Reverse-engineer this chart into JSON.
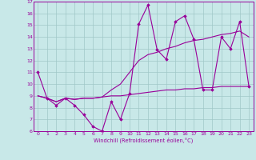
{
  "title": "",
  "xlabel": "Windchill (Refroidissement éolien,°C)",
  "ylabel": "",
  "xlim": [
    -0.5,
    23.5
  ],
  "ylim": [
    6,
    17
  ],
  "yticks": [
    6,
    7,
    8,
    9,
    10,
    11,
    12,
    13,
    14,
    15,
    16,
    17
  ],
  "xticks": [
    0,
    1,
    2,
    3,
    4,
    5,
    6,
    7,
    8,
    9,
    10,
    11,
    12,
    13,
    14,
    15,
    16,
    17,
    18,
    19,
    20,
    21,
    22,
    23
  ],
  "bg_color": "#c8e8e8",
  "line_color": "#990099",
  "grid_color": "#a0c8c8",
  "line1_x": [
    0,
    1,
    2,
    3,
    4,
    5,
    6,
    7,
    8,
    9,
    10,
    11,
    12,
    13,
    14,
    15,
    16,
    17,
    18,
    19,
    20,
    21,
    22,
    23
  ],
  "line1_y": [
    11.0,
    8.8,
    8.2,
    8.8,
    8.2,
    7.4,
    6.4,
    6.0,
    8.5,
    7.0,
    9.2,
    15.1,
    16.7,
    12.9,
    12.1,
    15.3,
    15.8,
    13.8,
    9.5,
    9.5,
    14.0,
    13.0,
    15.3,
    9.8
  ],
  "line2_x": [
    0,
    1,
    2,
    3,
    4,
    5,
    6,
    7,
    8,
    9,
    10,
    11,
    12,
    13,
    14,
    15,
    16,
    17,
    18,
    19,
    20,
    21,
    22,
    23
  ],
  "line2_y": [
    9.0,
    8.8,
    8.5,
    8.8,
    8.7,
    8.8,
    8.8,
    8.9,
    9.0,
    9.0,
    9.1,
    9.2,
    9.3,
    9.4,
    9.5,
    9.5,
    9.6,
    9.6,
    9.7,
    9.7,
    9.8,
    9.8,
    9.8,
    9.8
  ],
  "line3_x": [
    0,
    1,
    2,
    3,
    4,
    5,
    6,
    7,
    8,
    9,
    10,
    11,
    12,
    13,
    14,
    15,
    16,
    17,
    18,
    19,
    20,
    21,
    22,
    23
  ],
  "line3_y": [
    9.0,
    8.8,
    8.5,
    8.8,
    8.7,
    8.8,
    8.8,
    8.9,
    9.5,
    10.0,
    11.0,
    12.0,
    12.5,
    12.7,
    13.0,
    13.2,
    13.5,
    13.7,
    13.8,
    14.0,
    14.2,
    14.3,
    14.5,
    14.0
  ]
}
